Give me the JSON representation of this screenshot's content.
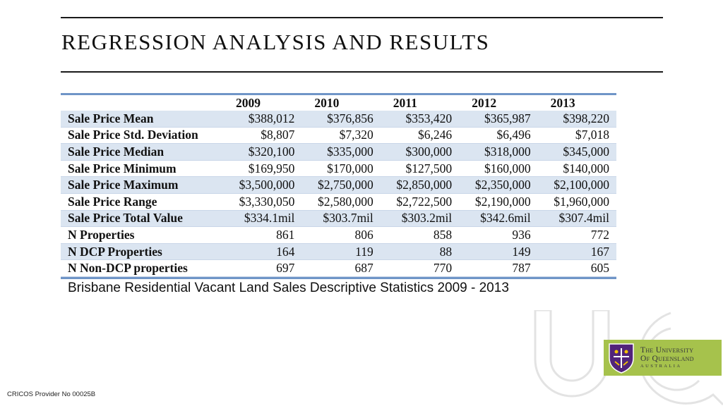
{
  "slide": {
    "title": "REGRESSION ANALYSIS AND RESULTS",
    "caption": "Brisbane Residential Vacant Land Sales Descriptive Statistics 2009 - 2013",
    "footer": "CRICOS Provider No 00025B",
    "url": "uq.edu.au"
  },
  "logo": {
    "line1": "The University",
    "line2": "Of Queensland",
    "line3": "AUSTRALIA",
    "bg_color": "#a6c24c"
  },
  "table": {
    "columns": [
      "2009",
      "2010",
      "2011",
      "2012",
      "2013"
    ],
    "rows": [
      {
        "label": "Sale Price Mean",
        "values": [
          "$388,012",
          "$376,856",
          "$353,420",
          "$365,987",
          "$398,220"
        ]
      },
      {
        "label": "Sale Price Std. Deviation",
        "values": [
          "$8,807",
          "$7,320",
          "$6,246",
          "$6,496",
          "$7,018"
        ]
      },
      {
        "label": "Sale Price Median",
        "values": [
          "$320,100",
          "$335,000",
          "$300,000",
          "$318,000",
          "$345,000"
        ]
      },
      {
        "label": "Sale Price Minimum",
        "values": [
          "$169,950",
          "$170,000",
          "$127,500",
          "$160,000",
          "$140,000"
        ]
      },
      {
        "label": "Sale Price Maximum",
        "values": [
          "$3,500,000",
          "$2,750,000",
          "$2,850,000",
          "$2,350,000",
          "$2,100,000"
        ]
      },
      {
        "label": "Sale Price Range",
        "values": [
          "$3,330,050",
          "$2,580,000",
          "$2,722,500",
          "$2,190,000",
          "$1,960,000"
        ]
      },
      {
        "label": "Sale Price Total Value",
        "values": [
          "$334.1mil",
          "$303.7mil",
          "$303.2mil",
          "$342.6mil",
          "$307.4mil"
        ]
      },
      {
        "label": "N Properties",
        "values": [
          "861",
          "806",
          "858",
          "936",
          "772"
        ]
      },
      {
        "label": "N DCP Properties",
        "values": [
          "164",
          "119",
          "88",
          "149",
          "167"
        ]
      },
      {
        "label": "N Non-DCP properties",
        "values": [
          "697",
          "687",
          "770",
          "787",
          "605"
        ]
      }
    ]
  }
}
